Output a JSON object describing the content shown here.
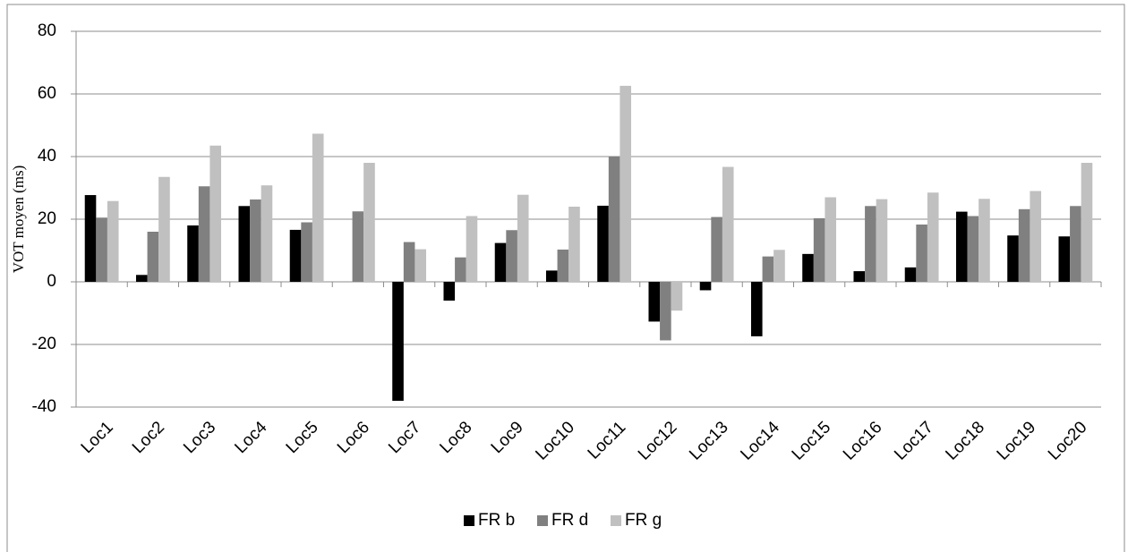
{
  "chart_data": {
    "type": "bar",
    "y_label": "VOT moyen (ms)",
    "categories": [
      "Loc1",
      "Loc2",
      "Loc3",
      "Loc4",
      "Loc5",
      "Loc6",
      "Loc7",
      "Loc8",
      "Loc9",
      "Loc10",
      "Loc11",
      "Loc12",
      "Loc13",
      "Loc14",
      "Loc15",
      "Loc16",
      "Loc17",
      "Loc18",
      "Loc19",
      "Loc20"
    ],
    "series": [
      {
        "name": "FR b",
        "color": "#000000",
        "values": [
          27.7,
          2.2,
          18,
          24.2,
          16.6,
          0,
          -38,
          -6,
          12.4,
          3.6,
          24.3,
          -12.7,
          -2.7,
          -17.4,
          8.9,
          3.4,
          4.6,
          22.4,
          14.8,
          14.5
        ]
      },
      {
        "name": "FR d",
        "color": "#808080",
        "values": [
          20.5,
          16,
          30.5,
          26.3,
          19,
          22.5,
          12.7,
          7.8,
          16.5,
          10.3,
          40,
          -18.7,
          20.7,
          8.1,
          20.3,
          24.2,
          18.3,
          21,
          23.2,
          24.2
        ]
      },
      {
        "name": "FR g",
        "color": "#c0c0c0",
        "values": [
          25.8,
          33.5,
          43.5,
          30.8,
          47.3,
          38,
          10.4,
          21,
          27.8,
          24,
          62.6,
          -9.2,
          36.7,
          10.2,
          27,
          26.4,
          28.5,
          26.5,
          29,
          38
        ]
      }
    ],
    "ylim": [
      -40,
      80
    ],
    "yticks": [
      -40,
      -20,
      0,
      20,
      40,
      60,
      80
    ],
    "grid": true,
    "legend": "bottom"
  }
}
